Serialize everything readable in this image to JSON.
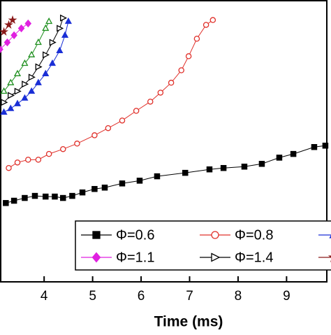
{
  "chart_data": {
    "type": "line",
    "x_label": "Time (ms)",
    "xlim": [
      3.09,
      9.83
    ],
    "xticks": [
      4,
      5,
      6,
      7,
      8,
      9
    ],
    "ylim": [
      0,
      12.2
    ],
    "series": [
      {
        "name": "Φ=0.6",
        "color": "#000000",
        "marker": "square",
        "filled": true,
        "x": [
          3.21,
          3.38,
          3.6,
          3.81,
          4.03,
          4.22,
          4.39,
          4.58,
          4.79,
          5.04,
          5.25,
          5.61,
          5.97,
          6.33,
          6.91,
          7.41,
          7.7,
          8.13,
          8.49,
          8.85,
          9.14,
          9.57,
          9.8
        ],
        "values": [
          3.42,
          3.52,
          3.64,
          3.73,
          3.7,
          3.7,
          3.64,
          3.73,
          3.88,
          4.03,
          4.09,
          4.27,
          4.39,
          4.58,
          4.73,
          4.88,
          4.94,
          5.0,
          5.12,
          5.39,
          5.55,
          5.85,
          5.91
        ]
      },
      {
        "name": "Φ=0.8",
        "color": "#e0302a",
        "marker": "circle",
        "filled": false,
        "x": [
          3.27,
          3.45,
          3.67,
          3.88,
          4.1,
          4.39,
          4.68,
          5.04,
          5.32,
          5.61,
          5.9,
          6.19,
          6.4,
          6.62,
          6.83,
          6.98,
          7.15,
          7.34,
          7.48
        ],
        "values": [
          4.94,
          5.18,
          5.3,
          5.3,
          5.55,
          5.76,
          6.0,
          6.36,
          6.67,
          7.0,
          7.42,
          7.82,
          8.21,
          8.64,
          9.18,
          9.79,
          10.55,
          11.15,
          11.36
        ]
      },
      {
        "color": "#1a2fd6",
        "marker": "triangle",
        "filled": true,
        "x": [
          3.17,
          3.31,
          3.45,
          3.6,
          3.74,
          3.88,
          4.03,
          4.17,
          4.32,
          4.43,
          4.5
        ],
        "values": [
          7.36,
          7.52,
          7.73,
          7.97,
          8.27,
          8.64,
          9.03,
          9.48,
          10.03,
          10.7,
          11.3
        ]
      },
      {
        "name": "Φ=1.1",
        "color": "#e020e0",
        "marker": "diamond",
        "filled": true,
        "x": [
          3.09,
          3.24,
          3.38,
          3.53,
          3.67
        ],
        "values": [
          10.09,
          10.39,
          10.7,
          11.0,
          11.21
        ]
      },
      {
        "name": "Φ=1.4",
        "color": "#000000",
        "marker": "tri-right",
        "filled": false,
        "x": [
          3.17,
          3.31,
          3.45,
          3.6,
          3.74,
          3.88,
          4.03,
          4.17,
          4.32,
          4.39
        ],
        "values": [
          7.79,
          8.09,
          8.27,
          8.58,
          8.88,
          9.33,
          9.85,
          10.39,
          11.0,
          11.45
        ]
      },
      {
        "color": "#8b1a1a",
        "marker": "star",
        "filled": true,
        "x": [
          3.17,
          3.27,
          3.35
        ],
        "values": [
          10.85,
          11.15,
          11.36
        ]
      },
      {
        "color": "#1e8f1e",
        "marker": "triangle",
        "filled": false,
        "in_legend": false,
        "x": [
          3.17,
          3.31,
          3.45,
          3.6,
          3.74,
          3.88,
          4.03,
          4.1
        ],
        "values": [
          8.27,
          8.64,
          9.03,
          9.48,
          9.85,
          10.39,
          11.0,
          11.3
        ]
      }
    ]
  }
}
